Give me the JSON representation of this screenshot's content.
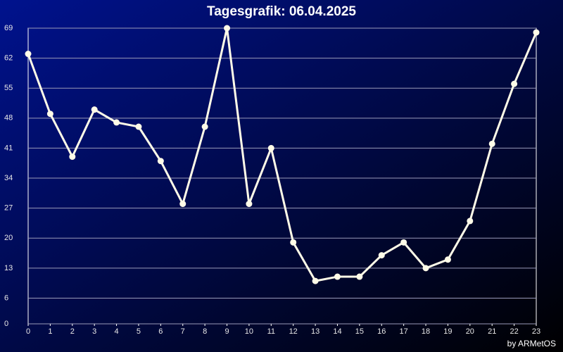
{
  "chart_data": {
    "type": "line",
    "title": "Tagesgrafik: 06.04.2025",
    "footer": "by ARMetOS",
    "x": [
      0,
      1,
      2,
      3,
      4,
      5,
      6,
      7,
      8,
      9,
      10,
      11,
      12,
      13,
      14,
      15,
      16,
      17,
      18,
      19,
      20,
      21,
      22,
      23
    ],
    "series": [
      {
        "color": "#fffbe8",
        "values": [
          63,
          49,
          39,
          50,
          47,
          46,
          38,
          28,
          46,
          69,
          28,
          41,
          19,
          10,
          11,
          11,
          16,
          19,
          13,
          15,
          24,
          42,
          56,
          68
        ]
      }
    ],
    "xlim": [
      0,
      23
    ],
    "xticks": [
      0,
      1,
      2,
      3,
      4,
      5,
      6,
      7,
      8,
      9,
      10,
      11,
      12,
      13,
      14,
      15,
      16,
      17,
      18,
      19,
      20,
      21,
      22,
      23
    ],
    "ylim": [
      0,
      69
    ],
    "yticks": [
      0,
      6,
      13,
      20,
      27,
      34,
      41,
      48,
      55,
      62,
      69
    ],
    "grid": true
  }
}
